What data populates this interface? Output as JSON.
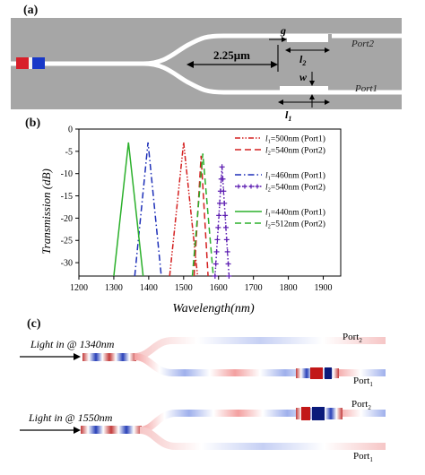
{
  "panel_a": {
    "label": "(a)",
    "dimension_center": "2.25μm",
    "gap_label": "g",
    "l2_label": "l",
    "l2_sub": "2",
    "w_label": "w",
    "l1_label": "l",
    "l1_sub": "1",
    "port2_label": "Port2",
    "port1_label": "Port1",
    "colors": {
      "device_gray": "#a6a6a6",
      "waveguide": "#ffffff",
      "red": "#d81f2a",
      "blue": "#1838c8"
    }
  },
  "panel_b": {
    "label": "(b)",
    "legend": [
      {
        "l_prefix": "l",
        "sub": "1",
        "text": "=500nm (Port1)"
      },
      {
        "l_prefix": "l",
        "sub": "2",
        "text": "=540nm (Port2)"
      },
      {
        "l_prefix": "l",
        "sub": "1",
        "text": "=460nm (Port1)"
      },
      {
        "l_prefix": "l",
        "sub": "2",
        "text": "=540nm (Port2)"
      },
      {
        "l_prefix": "l",
        "sub": "1",
        "text": "=440nm (Port1)"
      },
      {
        "l_prefix": "l",
        "sub": "2",
        "text": "=512nm (Port2)"
      }
    ]
  },
  "panel_c": {
    "label": "(c)",
    "light_in_1": "Light in @ 1340nm",
    "light_in_2": "Light in @ 1550nm",
    "port_top_1": "Port",
    "port_top_1_sub": "2",
    "port_bot_1": "Port",
    "port_bot_1_sub": "1",
    "port_top_2": "Port",
    "port_top_2_sub": "2",
    "port_bot_2": "Port",
    "port_bot_2_sub": "1"
  },
  "chart_data": {
    "type": "line",
    "title": "",
    "xlabel": "Wavelength(nm)",
    "ylabel": "Transmission (dB)",
    "xlim": [
      1200,
      1950
    ],
    "ylim": [
      -33,
      0
    ],
    "xticks": [
      1200,
      1300,
      1400,
      1500,
      1600,
      1700,
      1800,
      1900
    ],
    "yticks": [
      0,
      -5,
      -10,
      -15,
      -20,
      -25,
      -30
    ],
    "legend_position": "right",
    "series": [
      {
        "name": "l1=500nm (Port1)",
        "color": "#d42020",
        "dash": "dashdotdot",
        "marker": "none",
        "x": [
          1460,
          1500,
          1540
        ],
        "y": [
          -33,
          -3,
          -33
        ]
      },
      {
        "name": "l2=540nm (Port2)",
        "color": "#d42020",
        "dash": "dash",
        "marker": "none",
        "x": [
          1530,
          1550,
          1570
        ],
        "y": [
          -33,
          -6,
          -33
        ]
      },
      {
        "name": "l1=460nm (Port1)",
        "color": "#1d2fb8",
        "dash": "dashdot",
        "marker": "none",
        "x": [
          1360,
          1398,
          1436
        ],
        "y": [
          -33,
          -3,
          -33
        ]
      },
      {
        "name": "l2=540nm (Port2)",
        "color": "#5a1ab0",
        "dash": "dot",
        "marker": "plus",
        "x": [
          1590,
          1610,
          1630
        ],
        "y": [
          -33,
          -8.5,
          -33
        ]
      },
      {
        "name": "l1=440nm (Port1)",
        "color": "#2bb02b",
        "dash": "solid",
        "marker": "none",
        "x": [
          1300,
          1342,
          1384
        ],
        "y": [
          -33,
          -3,
          -33
        ]
      },
      {
        "name": "l2=512nm (Port2)",
        "color": "#2bb02b",
        "dash": "dash",
        "marker": "none",
        "x": [
          1525,
          1555,
          1585
        ],
        "y": [
          -33,
          -5.5,
          -33
        ]
      }
    ]
  }
}
